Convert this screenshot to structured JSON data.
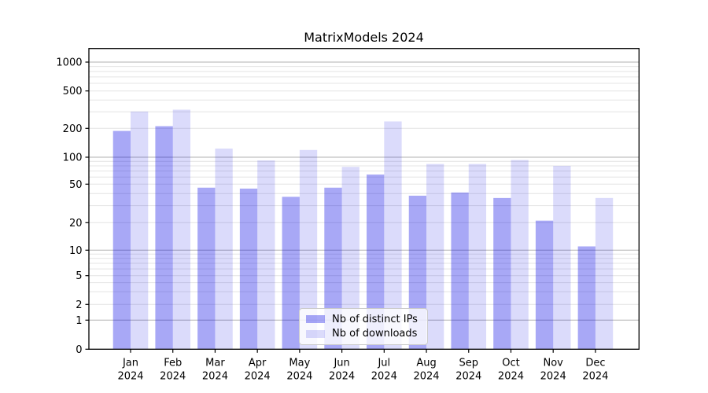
{
  "chart_data": {
    "type": "bar",
    "title": "MatrixModels 2024",
    "categories": [
      "Jan 2024",
      "Feb 2024",
      "Mar 2024",
      "Apr 2024",
      "May 2024",
      "Jun 2024",
      "Jul 2024",
      "Aug 2024",
      "Sep 2024",
      "Oct 2024",
      "Nov 2024",
      "Dec 2024"
    ],
    "series": [
      {
        "name": "Nb of distinct IPs",
        "color": "rgba(0,0,230,0.34)",
        "solid_color": "#a9a9f6",
        "values": [
          188,
          211,
          46,
          45,
          37,
          46,
          64,
          38,
          41,
          36,
          21,
          11
        ]
      },
      {
        "name": "Nb of downloads",
        "color": "rgba(0,0,230,0.14)",
        "solid_color": "#dcdcfb",
        "values": [
          302,
          316,
          123,
          92,
          119,
          78,
          237,
          84,
          84,
          93,
          80,
          36
        ]
      }
    ],
    "xlabel": "",
    "ylabel": "",
    "y_axis": {
      "scale": "symlog",
      "tick_labels": [
        "0",
        "1",
        "2",
        "5",
        "10",
        "20",
        "50",
        "100",
        "200",
        "500",
        "1000"
      ],
      "tick_values": [
        0,
        1,
        2,
        5,
        10,
        20,
        50,
        100,
        200,
        500,
        1000
      ],
      "major_gridline_values": [
        1,
        10,
        100,
        1000
      ],
      "ylim": [
        0,
        1500
      ]
    },
    "grid": true,
    "legend_position": "lower-center-inside",
    "colors": {
      "major_grid": "#b2b2b2",
      "minor_grid": "#e4e4e4",
      "spine": "#000000",
      "text": "#000000"
    }
  }
}
